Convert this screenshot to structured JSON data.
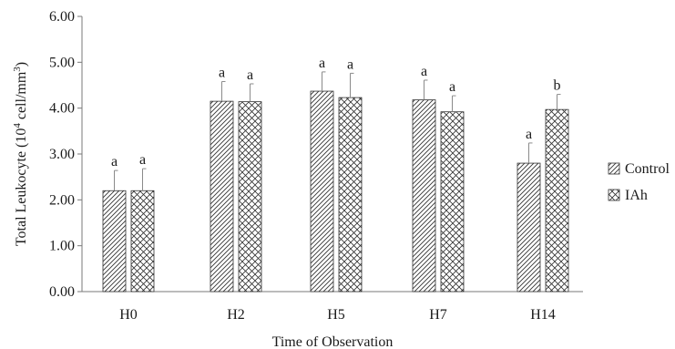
{
  "chart_data": {
    "type": "bar",
    "xlabel": "Time of Observation",
    "ylabel_parts": [
      "Total Leukocyte (10",
      "4",
      " cell/mm",
      "3",
      ")"
    ],
    "ylim": [
      0,
      6
    ],
    "yticks": [
      0,
      1,
      2,
      3,
      4,
      5,
      6
    ],
    "ytick_labels": [
      "0.00",
      "1.00",
      "2.00",
      "3.00",
      "4.00",
      "5.00",
      "6.00"
    ],
    "categories": [
      "H0",
      "H2",
      "H5",
      "H7",
      "H14"
    ],
    "series": [
      {
        "name": "Control",
        "pattern": "diagonal",
        "values": [
          2.2,
          4.15,
          4.37,
          4.18,
          2.8
        ],
        "errors": [
          0.44,
          0.43,
          0.42,
          0.43,
          0.44
        ],
        "labels": [
          "a",
          "a",
          "a",
          "a",
          "a"
        ]
      },
      {
        "name": "IAh",
        "pattern": "crosshatch",
        "values": [
          2.2,
          4.14,
          4.23,
          3.92,
          3.97
        ],
        "errors": [
          0.48,
          0.39,
          0.53,
          0.35,
          0.33
        ],
        "labels": [
          "a",
          "a",
          "a",
          "a",
          "b"
        ]
      }
    ],
    "legend_position": "right",
    "grid": false
  }
}
